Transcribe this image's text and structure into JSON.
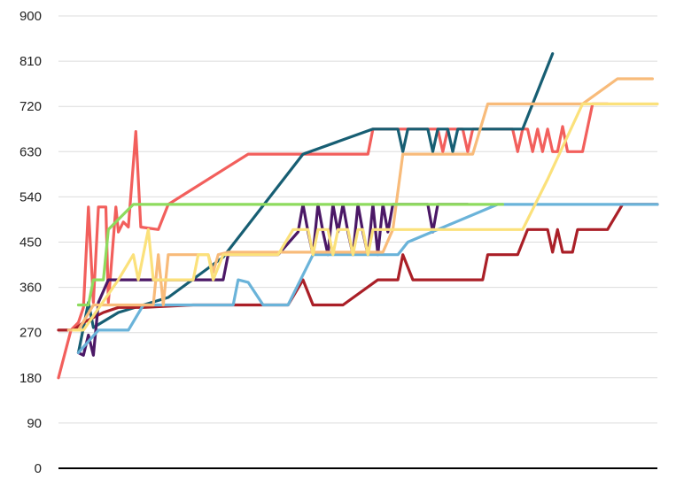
{
  "chart_data": {
    "type": "line",
    "title": "",
    "xlabel": "",
    "ylabel": "",
    "xlim": [
      0,
      120
    ],
    "ylim": [
      0,
      900
    ],
    "yticks": [
      "0",
      "90",
      "180",
      "270",
      "360",
      "450",
      "540",
      "630",
      "720",
      "810",
      "900"
    ],
    "grid": "horizontal",
    "legend": "none",
    "series": [
      {
        "color": "#f25f5c",
        "points": [
          [
            0,
            180
          ],
          [
            2.5,
            275
          ],
          [
            4,
            290
          ],
          [
            5,
            320
          ],
          [
            6,
            520
          ],
          [
            7,
            330
          ],
          [
            8,
            520
          ],
          [
            9.5,
            520
          ],
          [
            10,
            330
          ],
          [
            11.5,
            520
          ],
          [
            12,
            470
          ],
          [
            13,
            490
          ],
          [
            14,
            480
          ],
          [
            15.5,
            670
          ],
          [
            16.5,
            480
          ],
          [
            20,
            475
          ],
          [
            22,
            525
          ],
          [
            38,
            625
          ],
          [
            62,
            625
          ],
          [
            63,
            675
          ],
          [
            76,
            675
          ],
          [
            77,
            630
          ],
          [
            78,
            675
          ],
          [
            81,
            675
          ],
          [
            82,
            630
          ],
          [
            83,
            675
          ],
          [
            91,
            675
          ],
          [
            92,
            630
          ],
          [
            93,
            675
          ],
          [
            94,
            675
          ],
          [
            95,
            630
          ],
          [
            96,
            675
          ],
          [
            97,
            630
          ],
          [
            98,
            675
          ],
          [
            99,
            630
          ],
          [
            100,
            630
          ],
          [
            101,
            680
          ],
          [
            102,
            630
          ],
          [
            105,
            630
          ],
          [
            107,
            725
          ],
          [
            110,
            725
          ]
        ]
      },
      {
        "color": "#175e73",
        "points": [
          [
            4,
            230
          ],
          [
            5,
            280
          ],
          [
            6,
            330
          ],
          [
            7,
            280
          ],
          [
            12,
            310
          ],
          [
            22,
            340
          ],
          [
            33,
            420
          ],
          [
            49,
            625
          ],
          [
            63,
            675
          ],
          [
            68,
            675
          ],
          [
            69,
            630
          ],
          [
            70,
            675
          ],
          [
            74,
            675
          ],
          [
            75,
            630
          ],
          [
            76,
            675
          ],
          [
            78,
            675
          ],
          [
            79,
            630
          ],
          [
            80,
            675
          ],
          [
            93,
            675
          ],
          [
            99,
            825
          ]
        ]
      },
      {
        "color": "#aa1f27",
        "points": [
          [
            0,
            275
          ],
          [
            3,
            275
          ],
          [
            5,
            290
          ],
          [
            9,
            310
          ],
          [
            12,
            320
          ],
          [
            17,
            320
          ],
          [
            27,
            325
          ],
          [
            46,
            325
          ],
          [
            49,
            375
          ],
          [
            51,
            325
          ],
          [
            57,
            325
          ],
          [
            64,
            375
          ],
          [
            68,
            375
          ],
          [
            69,
            425
          ],
          [
            71,
            375
          ],
          [
            85,
            375
          ],
          [
            86,
            425
          ],
          [
            92,
            425
          ],
          [
            94,
            475
          ],
          [
            98,
            475
          ],
          [
            99,
            430
          ],
          [
            100,
            475
          ],
          [
            101,
            430
          ],
          [
            103,
            430
          ],
          [
            104,
            475
          ],
          [
            110,
            475
          ],
          [
            113,
            525
          ],
          [
            120,
            525
          ]
        ]
      },
      {
        "color": "#4b1866",
        "points": [
          [
            4,
            230
          ],
          [
            5,
            225
          ],
          [
            6,
            265
          ],
          [
            7,
            225
          ],
          [
            8,
            330
          ],
          [
            10,
            375
          ],
          [
            18,
            375
          ],
          [
            28,
            375
          ],
          [
            33,
            375
          ],
          [
            34,
            425
          ],
          [
            44,
            425
          ],
          [
            48,
            470
          ],
          [
            49,
            525
          ],
          [
            50,
            470
          ],
          [
            51,
            425
          ],
          [
            52,
            525
          ],
          [
            53,
            470
          ],
          [
            54,
            425
          ],
          [
            55,
            525
          ],
          [
            56,
            470
          ],
          [
            57,
            525
          ],
          [
            58,
            470
          ],
          [
            59,
            425
          ],
          [
            60,
            525
          ],
          [
            61,
            470
          ],
          [
            62,
            425
          ],
          [
            63,
            525
          ],
          [
            64,
            425
          ],
          [
            65,
            525
          ],
          [
            66,
            470
          ],
          [
            67,
            525
          ],
          [
            74,
            525
          ],
          [
            75,
            470
          ],
          [
            76,
            525
          ],
          [
            82,
            525
          ]
        ]
      },
      {
        "color": "#6ab3d9",
        "points": [
          [
            4,
            230
          ],
          [
            8,
            275
          ],
          [
            14,
            275
          ],
          [
            17,
            325
          ],
          [
            35,
            325
          ],
          [
            36,
            375
          ],
          [
            38,
            370
          ],
          [
            41,
            325
          ],
          [
            46,
            325
          ],
          [
            51,
            425
          ],
          [
            68,
            425
          ],
          [
            70,
            450
          ],
          [
            88,
            525
          ],
          [
            120,
            525
          ]
        ]
      },
      {
        "color": "#f8bb7a",
        "points": [
          [
            2,
            275
          ],
          [
            4,
            275
          ],
          [
            7,
            325
          ],
          [
            15,
            325
          ],
          [
            19,
            325
          ],
          [
            20,
            425
          ],
          [
            21,
            325
          ],
          [
            22,
            425
          ],
          [
            30,
            425
          ],
          [
            31,
            390
          ],
          [
            32,
            425
          ],
          [
            34,
            430
          ],
          [
            62,
            430
          ],
          [
            64,
            430
          ],
          [
            65,
            430
          ],
          [
            67,
            475
          ],
          [
            69,
            625
          ],
          [
            78,
            625
          ],
          [
            80,
            625
          ],
          [
            83,
            625
          ],
          [
            86,
            725
          ],
          [
            90,
            725
          ],
          [
            105,
            725
          ],
          [
            112,
            775
          ],
          [
            119,
            775
          ]
        ]
      },
      {
        "color": "#fbe17b",
        "points": [
          [
            3,
            275
          ],
          [
            5,
            275
          ],
          [
            12,
            375
          ],
          [
            15,
            425
          ],
          [
            16,
            375
          ],
          [
            18,
            475
          ],
          [
            19,
            375
          ],
          [
            25,
            375
          ],
          [
            27,
            375
          ],
          [
            28,
            425
          ],
          [
            30,
            425
          ],
          [
            31,
            375
          ],
          [
            33,
            425
          ],
          [
            44,
            425
          ],
          [
            47,
            475
          ],
          [
            50,
            475
          ],
          [
            51,
            425
          ],
          [
            52,
            475
          ],
          [
            54,
            475
          ],
          [
            55,
            425
          ],
          [
            56,
            475
          ],
          [
            58,
            475
          ],
          [
            59,
            425
          ],
          [
            60,
            475
          ],
          [
            61,
            475
          ],
          [
            62,
            425
          ],
          [
            63,
            475
          ],
          [
            88,
            475
          ],
          [
            93,
            475
          ],
          [
            98,
            575
          ],
          [
            105,
            725
          ],
          [
            120,
            725
          ]
        ]
      },
      {
        "color": "#8edb5e",
        "points": [
          [
            4,
            325
          ],
          [
            6,
            325
          ],
          [
            7,
            375
          ],
          [
            9,
            375
          ],
          [
            10,
            475
          ],
          [
            15,
            525
          ],
          [
            17,
            525
          ],
          [
            40,
            525
          ],
          [
            55,
            525
          ],
          [
            70,
            525
          ],
          [
            86,
            525
          ],
          [
            89,
            525
          ]
        ]
      }
    ]
  }
}
